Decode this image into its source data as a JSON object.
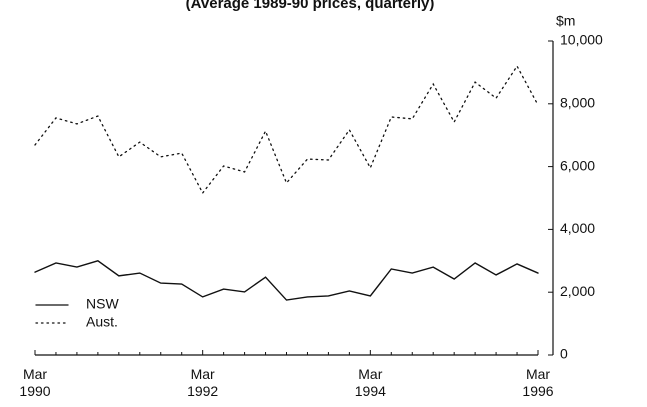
{
  "chart_data": {
    "type": "line",
    "subtitle": "(Average 1989-90 prices, quarterly)",
    "y_label": "$m",
    "categories": [
      "Mar 1990",
      null,
      null,
      null,
      null,
      null,
      null,
      null,
      "Mar 1992",
      null,
      null,
      null,
      null,
      null,
      null,
      null,
      "Mar 1994",
      null,
      null,
      null,
      null,
      null,
      null,
      null,
      "Mar 1996"
    ],
    "series": [
      {
        "name": "NSW",
        "color": "#111111",
        "line_style": "solid",
        "values": [
          2640,
          2930,
          2800,
          3000,
          2520,
          2610,
          2290,
          2260,
          1850,
          2100,
          2010,
          2480,
          1750,
          1850,
          1880,
          2040,
          1880,
          2740,
          2610,
          2800,
          2420,
          2930,
          2550,
          2900,
          2610
        ]
      },
      {
        "name": "Aust.",
        "color": "#111111",
        "line_style": "dotted",
        "values": [
          6690,
          7550,
          7360,
          7610,
          6310,
          6780,
          6310,
          6430,
          5160,
          6020,
          5830,
          7130,
          5480,
          6240,
          6210,
          7170,
          5960,
          7580,
          7520,
          8630,
          7420,
          8690,
          8180,
          9200,
          7960
        ]
      }
    ],
    "ylim": [
      0,
      10000
    ],
    "yticks": [
      0,
      {
        "value": 2000,
        "label": "2,000"
      },
      {
        "value": 4000,
        "label": "4,000"
      },
      {
        "value": 6000,
        "label": "6,000"
      },
      {
        "value": 8000,
        "label": "8,000"
      },
      {
        "value": 10000,
        "label": "10,000"
      }
    ],
    "y_axis_side": "right",
    "legend": "lower left",
    "grid": false
  }
}
